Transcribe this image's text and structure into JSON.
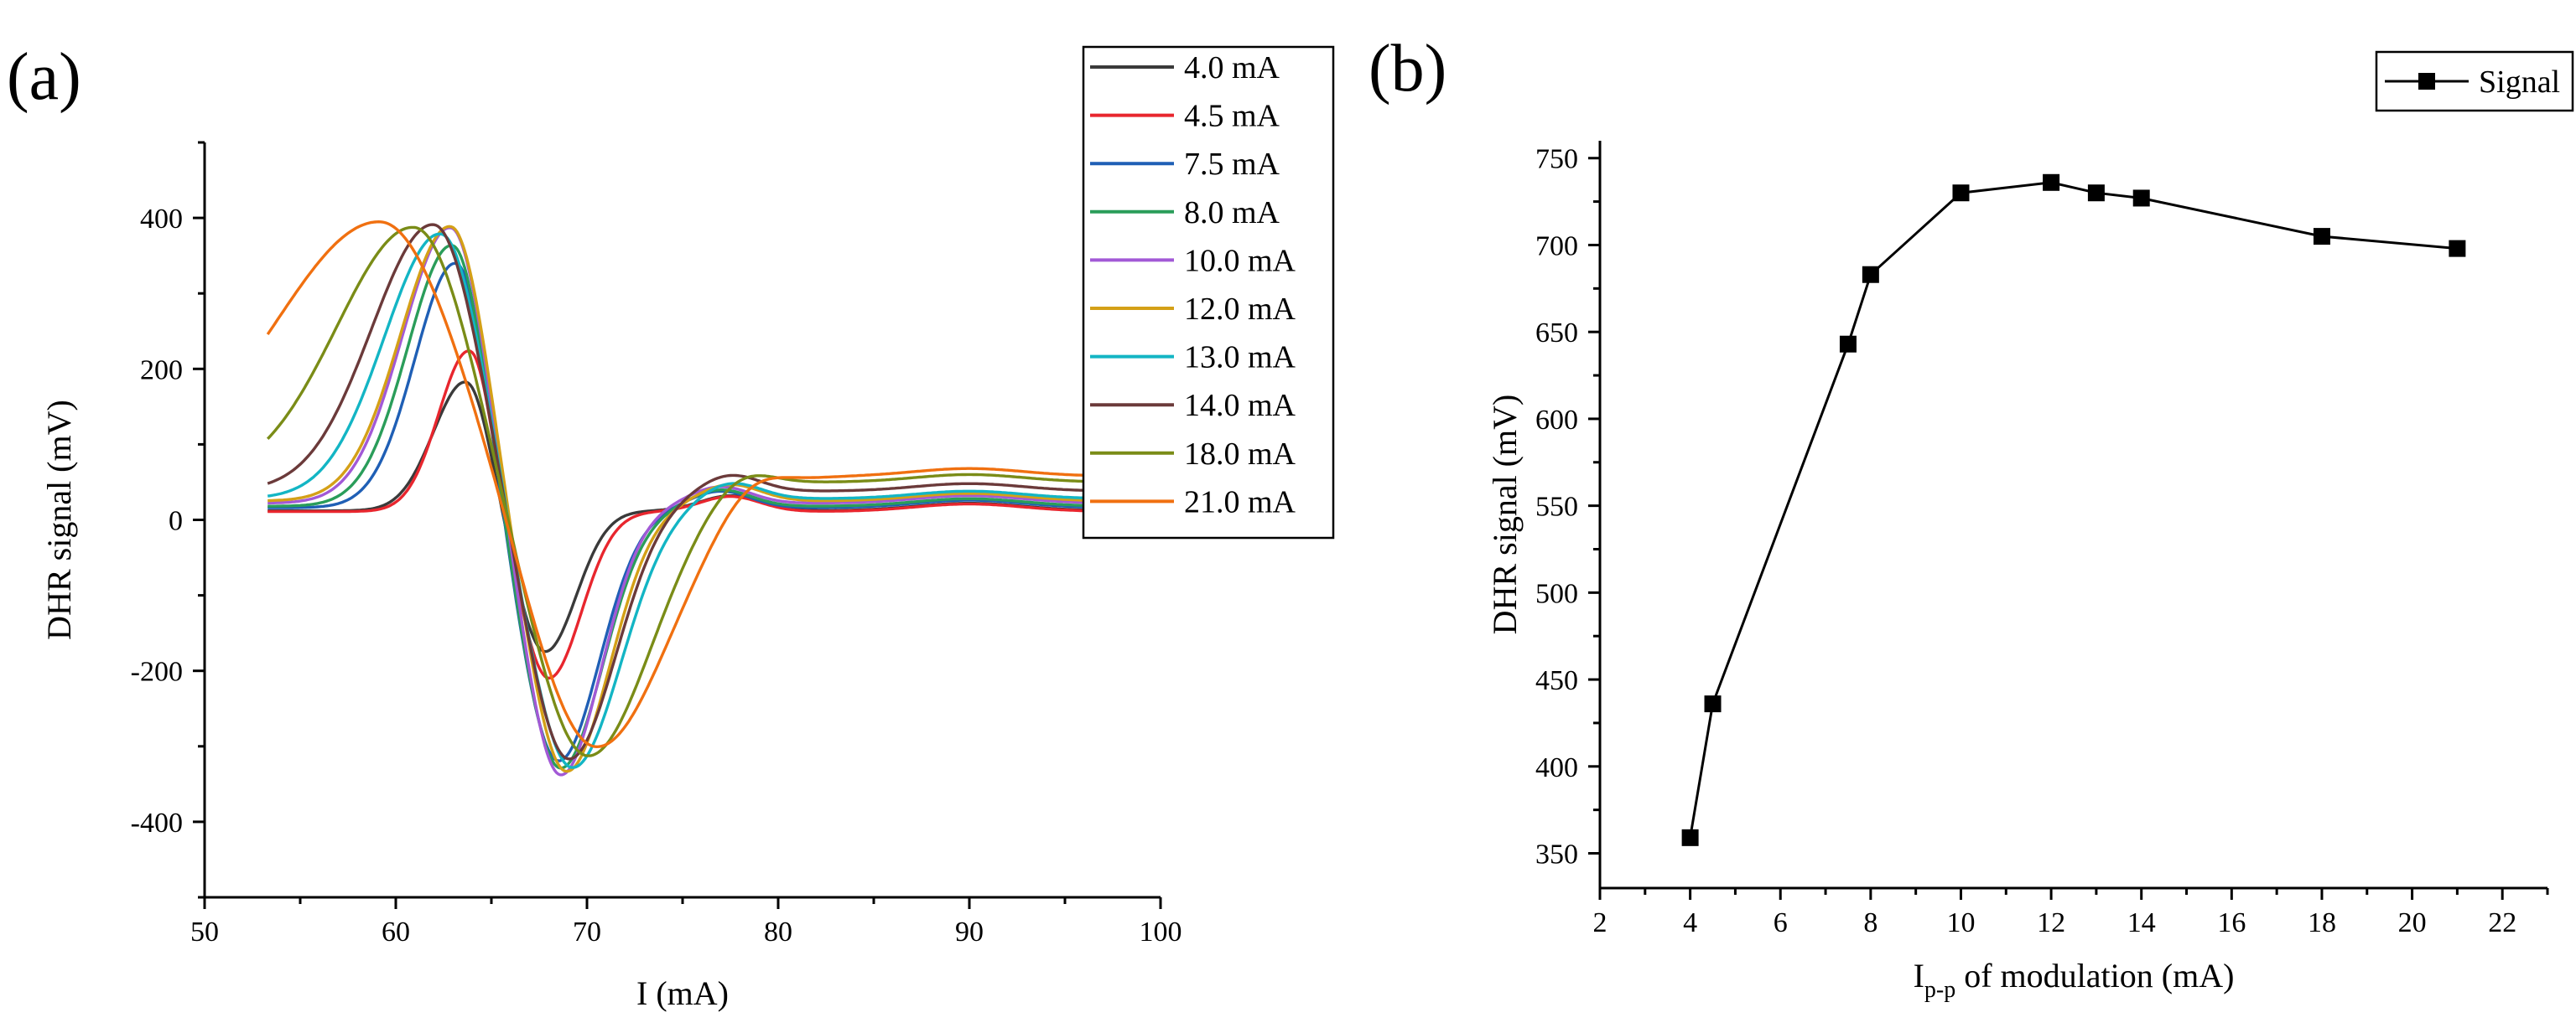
{
  "panels": {
    "a": {
      "label": "(a)"
    },
    "b": {
      "label": "(b)"
    }
  },
  "chart_data": [
    {
      "type": "line",
      "panel": "(a)",
      "xlabel": "I (mA)",
      "ylabel": "DHR signal (mV)",
      "xlim": [
        50,
        100
      ],
      "ylim": [
        -500,
        500
      ],
      "xticks": [
        50,
        60,
        70,
        80,
        90,
        100
      ],
      "yticks": [
        -400,
        -200,
        0,
        200,
        400
      ],
      "legend_position": "top-right",
      "series": [
        {
          "name": "4.0 mA",
          "color": "#3a3a3a",
          "baseline": 12,
          "peak_x": 63.7,
          "peak_y": 185,
          "zero_x": 65.6,
          "trough_x": 67.8,
          "trough_y": -175,
          "bump_x": 77.5,
          "bump_y": 20
        },
        {
          "name": "4.5 mA",
          "color": "#e8262e",
          "baseline": 11,
          "peak_x": 63.9,
          "peak_y": 228,
          "zero_x": 65.7,
          "trough_x": 68.0,
          "trough_y": -210,
          "bump_x": 77.5,
          "bump_y": 20
        },
        {
          "name": "7.5 mA",
          "color": "#1f5fb5",
          "baseline": 16,
          "peak_x": 63.2,
          "peak_y": 345,
          "zero_x": 65.6,
          "trough_x": 68.5,
          "trough_y": -320,
          "bump_x": 77.0,
          "bump_y": 22
        },
        {
          "name": "8.0 mA",
          "color": "#2a9d5a",
          "baseline": 18,
          "peak_x": 63.0,
          "peak_y": 368,
          "zero_x": 65.6,
          "trough_x": 68.6,
          "trough_y": -330,
          "bump_x": 77.0,
          "bump_y": 22
        },
        {
          "name": "10.0 mA",
          "color": "#a259d6",
          "baseline": 22,
          "peak_x": 62.9,
          "peak_y": 390,
          "zero_x": 65.7,
          "trough_x": 68.6,
          "trough_y": -340,
          "bump_x": 77.0,
          "bump_y": 22
        },
        {
          "name": "12.0 mA",
          "color": "#d4a017",
          "baseline": 25,
          "peak_x": 62.9,
          "peak_y": 392,
          "zero_x": 65.8,
          "trough_x": 68.9,
          "trough_y": -335,
          "bump_x": 77.5,
          "bump_y": 22
        },
        {
          "name": "13.0 mA",
          "color": "#13b5c4",
          "baseline": 28,
          "peak_x": 62.4,
          "peak_y": 382,
          "zero_x": 65.7,
          "trough_x": 69.2,
          "trough_y": -330,
          "bump_x": 77.5,
          "bump_y": 22
        },
        {
          "name": "14.0 mA",
          "color": "#6b3a3a",
          "baseline": 38,
          "peak_x": 62.0,
          "peak_y": 393,
          "zero_x": 65.6,
          "trough_x": 69.0,
          "trough_y": -320,
          "bump_x": 77.5,
          "bump_y": 22
        },
        {
          "name": "18.0 mA",
          "color": "#7a8c17",
          "baseline": 50,
          "peak_x": 61.0,
          "peak_y": 390,
          "zero_x": 65.5,
          "trough_x": 70.0,
          "trough_y": -315,
          "bump_x": 78.0,
          "bump_y": 22
        },
        {
          "name": "21.0 mA",
          "color": "#f07010",
          "baseline": 58,
          "peak_x": 59.2,
          "peak_y": 396,
          "zero_x": 65.2,
          "trough_x": 70.4,
          "trough_y": -305,
          "bump_x": 78.5,
          "bump_y": 22
        }
      ]
    },
    {
      "type": "line",
      "panel": "(b)",
      "xlabel_main": "I",
      "xlabel_sub": "p-p",
      "xlabel_rest": " of modulation (mA)",
      "ylabel": "DHR signal (mV)",
      "xlim": [
        2,
        23
      ],
      "ylim": [
        330,
        760
      ],
      "xticks": [
        2,
        4,
        6,
        8,
        10,
        12,
        14,
        16,
        18,
        20,
        22
      ],
      "yticks": [
        350,
        400,
        450,
        500,
        550,
        600,
        650,
        700,
        750
      ],
      "legend_position": "top-right",
      "series": [
        {
          "name": "Signal",
          "color": "#000000",
          "marker": "square",
          "x": [
            4.0,
            4.5,
            7.5,
            8.0,
            10.0,
            12.0,
            13.0,
            14.0,
            18.0,
            21.0
          ],
          "y": [
            359,
            436,
            643,
            683,
            730,
            736,
            730,
            727,
            705,
            698
          ]
        }
      ]
    }
  ]
}
